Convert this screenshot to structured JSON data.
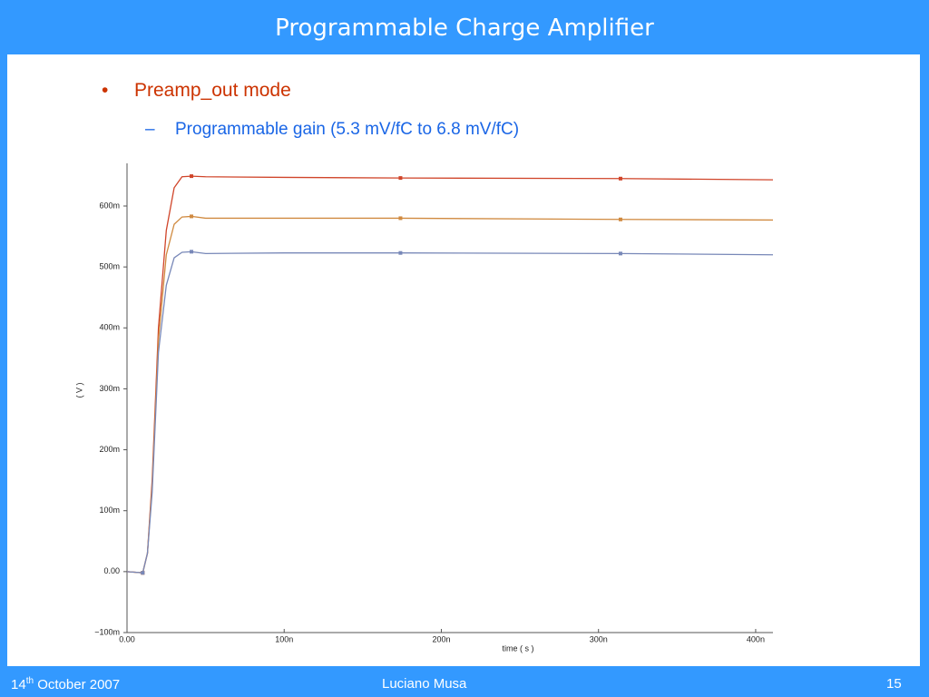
{
  "header": {
    "title": "Programmable Charge Amplifier"
  },
  "body": {
    "bullet": "•",
    "bullet_text": "Preamp_out mode",
    "sub_bullet": "–",
    "sub_bullet_text": "Programmable gain (5.3 mV/fC to 6.8 mV/fC)"
  },
  "chart_data": {
    "type": "line",
    "x_label": "time ( s )",
    "y_label": "( V )",
    "x": [
      0,
      1e-08,
      1.3e-08,
      1.6e-08,
      2e-08,
      2.5e-08,
      3e-08,
      3.5e-08,
      4.1e-08,
      5e-08,
      1e-07,
      1.74e-07,
      3.14e-07,
      4.11e-07
    ],
    "series": [
      {
        "color": "#d0452a",
        "values": [
          0,
          -0.002,
          0.03,
          0.15,
          0.4,
          0.56,
          0.63,
          0.648,
          0.649,
          0.648,
          0.647,
          0.646,
          0.645,
          0.643
        ]
      },
      {
        "color": "#d08a40",
        "values": [
          0,
          -0.002,
          0.03,
          0.14,
          0.38,
          0.52,
          0.57,
          0.582,
          0.583,
          0.58,
          0.58,
          0.58,
          0.578,
          0.577
        ]
      },
      {
        "color": "#7888b8",
        "values": [
          0,
          -0.002,
          0.03,
          0.13,
          0.36,
          0.47,
          0.515,
          0.524,
          0.525,
          0.522,
          0.523,
          0.523,
          0.522,
          0.52
        ]
      }
    ],
    "xlim": [
      0,
      4.11e-07
    ],
    "ylim": [
      -0.1,
      0.67
    ],
    "xticks": [
      {
        "value": 0,
        "label": "0.00"
      },
      {
        "value": 1e-07,
        "label": "100n"
      },
      {
        "value": 2e-07,
        "label": "200n"
      },
      {
        "value": 3e-07,
        "label": "300n"
      },
      {
        "value": 4e-07,
        "label": "400n"
      }
    ],
    "yticks": [
      {
        "value": -0.1,
        "label": "−100m"
      },
      {
        "value": 0,
        "label": "0.00"
      },
      {
        "value": 0.1,
        "label": "100m"
      },
      {
        "value": 0.2,
        "label": "200m"
      },
      {
        "value": 0.3,
        "label": "300m"
      },
      {
        "value": 0.4,
        "label": "400m"
      },
      {
        "value": 0.5,
        "label": "500m"
      },
      {
        "value": 0.6,
        "label": "600m"
      }
    ]
  },
  "footer": {
    "date_day": "14",
    "date_suffix": "th",
    "date_rest": "October 2007",
    "author": "Luciano Musa",
    "page": 15
  }
}
